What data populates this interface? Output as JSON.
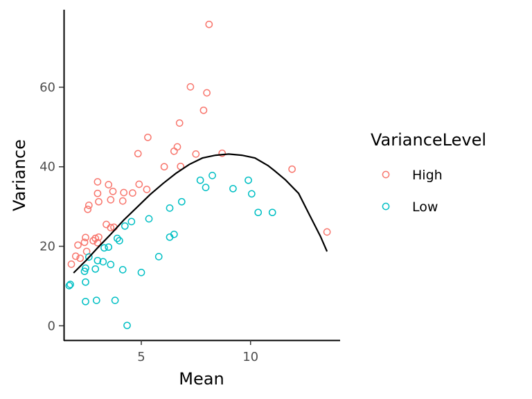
{
  "chart_data": {
    "type": "scatter",
    "title": "",
    "xlabel": "Mean",
    "ylabel": "Variance",
    "xlim": [
      1.45,
      14.1
    ],
    "ylim": [
      -3.6,
      79.5
    ],
    "xticks": [
      5,
      10
    ],
    "yticks": [
      0,
      20,
      40,
      60
    ],
    "grid": false,
    "legend": {
      "title": "VarianceLevel",
      "placement": "right",
      "entries": [
        "High",
        "Low"
      ]
    },
    "colors": {
      "High": "#F8766D",
      "Low": "#00BFC4",
      "curve": "#000000"
    },
    "series": [
      {
        "name": "High",
        "points": [
          [
            1.8,
            15.5
          ],
          [
            2.0,
            17.5
          ],
          [
            2.1,
            20.3
          ],
          [
            2.2,
            17.0
          ],
          [
            2.4,
            21.0
          ],
          [
            2.45,
            22.2
          ],
          [
            2.5,
            18.7
          ],
          [
            2.55,
            29.3
          ],
          [
            2.6,
            30.3
          ],
          [
            2.8,
            21.4
          ],
          [
            2.9,
            22.0
          ],
          [
            3.0,
            20.9
          ],
          [
            3.05,
            22.3
          ],
          [
            3.0,
            36.2
          ],
          [
            3.0,
            33.3
          ],
          [
            3.05,
            31.2
          ],
          [
            3.4,
            25.5
          ],
          [
            3.5,
            35.5
          ],
          [
            3.6,
            31.7
          ],
          [
            3.7,
            33.8
          ],
          [
            3.6,
            24.7
          ],
          [
            3.75,
            24.8
          ],
          [
            4.15,
            31.4
          ],
          [
            4.2,
            33.5
          ],
          [
            4.6,
            33.4
          ],
          [
            4.85,
            43.3
          ],
          [
            4.9,
            35.6
          ],
          [
            5.25,
            34.3
          ],
          [
            5.3,
            47.4
          ],
          [
            6.05,
            40.0
          ],
          [
            6.5,
            43.9
          ],
          [
            6.65,
            45.0
          ],
          [
            6.75,
            51.0
          ],
          [
            6.8,
            40.1
          ],
          [
            7.25,
            60.1
          ],
          [
            7.5,
            43.2
          ],
          [
            7.85,
            54.2
          ],
          [
            8.0,
            58.6
          ],
          [
            8.1,
            75.8
          ],
          [
            8.7,
            43.4
          ],
          [
            11.9,
            39.4
          ],
          [
            13.5,
            23.6
          ]
        ]
      },
      {
        "name": "Low",
        "points": [
          [
            1.7,
            10.1
          ],
          [
            1.75,
            10.4
          ],
          [
            2.4,
            13.7
          ],
          [
            2.45,
            14.5
          ],
          [
            2.45,
            11.0
          ],
          [
            2.45,
            6.1
          ],
          [
            2.6,
            17.3
          ],
          [
            2.9,
            14.3
          ],
          [
            3.0,
            16.4
          ],
          [
            2.95,
            6.4
          ],
          [
            3.25,
            16.1
          ],
          [
            3.3,
            19.6
          ],
          [
            3.5,
            19.8
          ],
          [
            3.6,
            15.4
          ],
          [
            3.8,
            6.4
          ],
          [
            3.9,
            22.0
          ],
          [
            4.0,
            21.4
          ],
          [
            4.15,
            14.1
          ],
          [
            4.25,
            25.1
          ],
          [
            4.35,
            0.1
          ],
          [
            4.55,
            26.2
          ],
          [
            5.0,
            13.4
          ],
          [
            5.35,
            26.9
          ],
          [
            5.8,
            17.4
          ],
          [
            6.3,
            29.6
          ],
          [
            6.3,
            22.3
          ],
          [
            6.5,
            23.0
          ],
          [
            6.85,
            31.2
          ],
          [
            7.7,
            36.6
          ],
          [
            7.95,
            34.8
          ],
          [
            8.25,
            37.8
          ],
          [
            9.2,
            34.5
          ],
          [
            9.9,
            36.6
          ],
          [
            10.05,
            33.2
          ],
          [
            10.35,
            28.5
          ],
          [
            11.0,
            28.5
          ]
        ]
      }
    ],
    "curve": [
      [
        1.9,
        13.3
      ],
      [
        2.5,
        16.6
      ],
      [
        3.0,
        19.6
      ],
      [
        3.6,
        23.0
      ],
      [
        4.2,
        26.6
      ],
      [
        4.8,
        29.8
      ],
      [
        5.4,
        33.0
      ],
      [
        6.0,
        35.8
      ],
      [
        6.6,
        38.4
      ],
      [
        7.2,
        40.6
      ],
      [
        7.8,
        42.2
      ],
      [
        8.4,
        42.9
      ],
      [
        9.0,
        43.2
      ],
      [
        9.6,
        42.9
      ],
      [
        10.2,
        42.2
      ],
      [
        10.8,
        40.3
      ],
      [
        11.1,
        39.0
      ],
      [
        11.6,
        36.7
      ],
      [
        12.2,
        33.3
      ],
      [
        12.7,
        27.9
      ],
      [
        13.2,
        22.5
      ],
      [
        13.5,
        18.7
      ]
    ]
  }
}
